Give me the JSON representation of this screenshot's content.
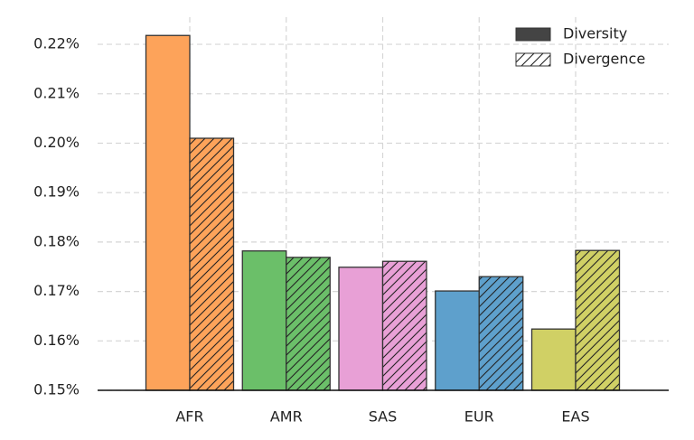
{
  "chart_data": {
    "type": "bar",
    "categories": [
      "AFR",
      "AMR",
      "SAS",
      "EUR",
      "EAS"
    ],
    "category_colors": [
      "#fda35a",
      "#6bbf69",
      "#e8a0d6",
      "#5ea0cc",
      "#d0d065"
    ],
    "series": [
      {
        "name": "Diversity",
        "color": "#444444",
        "hatch": false,
        "values": [
          0.2218,
          0.1782,
          0.1749,
          0.1701,
          0.1624
        ]
      },
      {
        "name": "Divergence",
        "color": "#ffffff",
        "hatch": true,
        "values": [
          0.201,
          0.1769,
          0.1761,
          0.173,
          0.1783
        ]
      }
    ],
    "ylim": [
      0.15,
      0.2255
    ],
    "yticks": [
      {
        "value": 0.15,
        "label": "0.15%"
      },
      {
        "value": 0.16,
        "label": "0.16%"
      },
      {
        "value": 0.17,
        "label": "0.17%"
      },
      {
        "value": 0.18,
        "label": "0.18%"
      },
      {
        "value": 0.19,
        "label": "0.19%"
      },
      {
        "value": 0.2,
        "label": "0.20%"
      },
      {
        "value": 0.21,
        "label": "0.21%"
      },
      {
        "value": 0.22,
        "label": "0.22%"
      }
    ],
    "grid": true,
    "legend": "upper right"
  }
}
